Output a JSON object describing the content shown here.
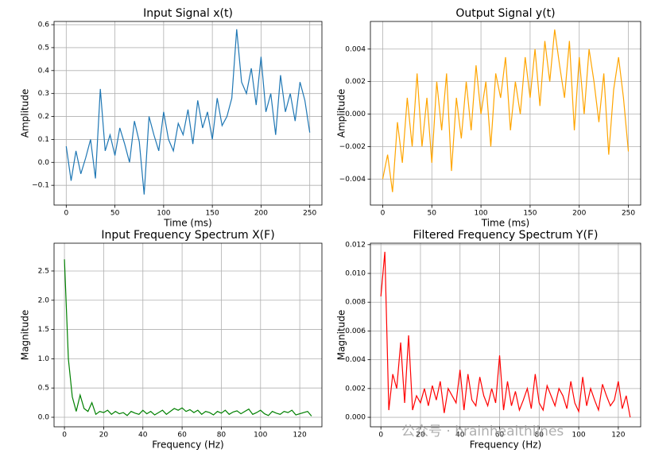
{
  "chart_data": [
    {
      "type": "line",
      "title": "Input Signal x(t)",
      "xlabel": "Time (ms)",
      "ylabel": "Amplitude",
      "color": "#1f77b4",
      "grid": true,
      "xlim": [
        -12.5,
        262.5
      ],
      "ylim": [
        -0.186,
        0.614
      ],
      "xticks": [
        0,
        50,
        100,
        150,
        200,
        250
      ],
      "yticks": [
        {
          "value": -0.1,
          "label": "−0.1"
        },
        {
          "value": 0,
          "label": "0.0"
        },
        0.1,
        0.2,
        0.3,
        0.4,
        0.5,
        0.6
      ],
      "x": [
        0,
        5,
        10,
        15,
        20,
        25,
        30,
        35,
        40,
        45,
        50,
        55,
        60,
        65,
        70,
        75,
        80,
        85,
        90,
        95,
        100,
        105,
        110,
        115,
        120,
        125,
        130,
        135,
        140,
        145,
        150,
        155,
        160,
        165,
        170,
        175,
        180,
        185,
        190,
        195,
        200,
        205,
        210,
        215,
        220,
        225,
        230,
        235,
        240,
        245,
        250
      ],
      "values": [
        0.07,
        -0.08,
        0.05,
        -0.05,
        0.02,
        0.1,
        -0.07,
        0.32,
        0.05,
        0.12,
        0.03,
        0.15,
        0.08,
        0.0,
        0.18,
        0.09,
        -0.14,
        0.2,
        0.12,
        0.05,
        0.22,
        0.1,
        0.05,
        0.17,
        0.12,
        0.23,
        0.08,
        0.27,
        0.15,
        0.22,
        0.1,
        0.28,
        0.16,
        0.2,
        0.28,
        0.58,
        0.35,
        0.3,
        0.41,
        0.25,
        0.46,
        0.22,
        0.3,
        0.12,
        0.38,
        0.22,
        0.3,
        0.18,
        0.35,
        0.27,
        0.13
      ]
    },
    {
      "type": "line",
      "title": "Output Signal y(t)",
      "xlabel": "Time (ms)",
      "ylabel": "Amplitude",
      "color": "#ffa500",
      "grid": true,
      "xlim": [
        -12.5,
        262.5
      ],
      "ylim": [
        -0.0056,
        0.0057
      ],
      "xticks": [
        0,
        50,
        100,
        150,
        200,
        250
      ],
      "yticks": [
        {
          "value": -0.004,
          "label": "−0.004"
        },
        {
          "value": -0.002,
          "label": "−0.002"
        },
        {
          "value": 0,
          "label": "0.000"
        },
        0.002,
        0.004
      ],
      "x": [
        0,
        5,
        10,
        15,
        20,
        25,
        30,
        35,
        40,
        45,
        50,
        55,
        60,
        65,
        70,
        75,
        80,
        85,
        90,
        95,
        100,
        105,
        110,
        115,
        120,
        125,
        130,
        135,
        140,
        145,
        150,
        155,
        160,
        165,
        170,
        175,
        180,
        185,
        190,
        195,
        200,
        205,
        210,
        215,
        220,
        225,
        230,
        235,
        240,
        245,
        250
      ],
      "values": [
        -0.004,
        -0.0025,
        -0.0048,
        -0.0005,
        -0.003,
        0.001,
        -0.002,
        0.0025,
        -0.002,
        0.001,
        -0.003,
        0.002,
        -0.001,
        0.0025,
        -0.0035,
        0.001,
        -0.0015,
        0.002,
        -0.001,
        0.003,
        0.0,
        0.002,
        -0.002,
        0.0025,
        0.001,
        0.0035,
        -0.001,
        0.002,
        0.0,
        0.0035,
        0.001,
        0.004,
        0.0005,
        0.0045,
        0.002,
        0.0052,
        0.003,
        0.001,
        0.0045,
        -0.001,
        0.0035,
        0.0,
        0.004,
        0.002,
        -0.0005,
        0.0025,
        -0.0025,
        0.0015,
        0.0035,
        0.001,
        -0.0023
      ]
    },
    {
      "type": "line",
      "title": "Input Frequency Spectrum X(F)",
      "xlabel": "Frequency (Hz)",
      "ylabel": "Magnitude",
      "color": "#008000",
      "grid": true,
      "xlim": [
        -5.3,
        131.3
      ],
      "ylim": [
        -0.163,
        2.975
      ],
      "xticks": [
        0,
        20,
        40,
        60,
        80,
        100,
        120
      ],
      "yticks": [
        {
          "value": 0,
          "label": "0.0"
        },
        0.5,
        {
          "value": 1,
          "label": "1.0"
        },
        1.5,
        {
          "value": 2,
          "label": "2.0"
        },
        2.5
      ],
      "x": [
        0,
        2,
        4,
        6,
        8,
        10,
        12,
        14,
        16,
        18,
        20,
        22,
        24,
        26,
        28,
        30,
        32,
        34,
        36,
        38,
        40,
        42,
        44,
        46,
        48,
        50,
        52,
        54,
        56,
        58,
        60,
        62,
        64,
        66,
        68,
        70,
        72,
        74,
        76,
        78,
        80,
        82,
        84,
        86,
        88,
        90,
        92,
        94,
        96,
        98,
        100,
        102,
        104,
        106,
        108,
        110,
        112,
        114,
        116,
        118,
        120,
        122,
        124,
        126
      ],
      "values": [
        2.7,
        1.0,
        0.35,
        0.1,
        0.38,
        0.15,
        0.1,
        0.25,
        0.05,
        0.1,
        0.08,
        0.12,
        0.05,
        0.1,
        0.06,
        0.08,
        0.03,
        0.1,
        0.07,
        0.05,
        0.12,
        0.06,
        0.1,
        0.04,
        0.08,
        0.12,
        0.05,
        0.1,
        0.15,
        0.12,
        0.16,
        0.1,
        0.13,
        0.08,
        0.12,
        0.05,
        0.1,
        0.08,
        0.04,
        0.1,
        0.07,
        0.12,
        0.05,
        0.09,
        0.11,
        0.06,
        0.1,
        0.14,
        0.05,
        0.08,
        0.12,
        0.06,
        0.03,
        0.1,
        0.07,
        0.05,
        0.1,
        0.08,
        0.12,
        0.04,
        0.06,
        0.08,
        0.1,
        0.02
      ]
    },
    {
      "type": "line",
      "title": "Filtered Frequency Spectrum Y(F)",
      "xlabel": "Frequency (Hz)",
      "ylabel": "Magnitude",
      "color": "#ff0000",
      "grid": true,
      "xlim": [
        -5.3,
        131.3
      ],
      "ylim": [
        -0.00066,
        0.0121
      ],
      "xticks": [
        0,
        20,
        40,
        60,
        80,
        100,
        120
      ],
      "yticks": [
        {
          "value": 0,
          "label": "0.000"
        },
        0.002,
        0.004,
        0.006,
        0.008,
        {
          "value": 0.01,
          "label": "0.010"
        },
        0.012
      ],
      "x": [
        0,
        2,
        4,
        6,
        8,
        10,
        12,
        14,
        16,
        18,
        20,
        22,
        24,
        26,
        28,
        30,
        32,
        34,
        36,
        38,
        40,
        42,
        44,
        46,
        48,
        50,
        52,
        54,
        56,
        58,
        60,
        62,
        64,
        66,
        68,
        70,
        72,
        74,
        76,
        78,
        80,
        82,
        84,
        86,
        88,
        90,
        92,
        94,
        96,
        98,
        100,
        102,
        104,
        106,
        108,
        110,
        112,
        114,
        116,
        118,
        120,
        122,
        124,
        126
      ],
      "values": [
        0.0084,
        0.0115,
        0.0005,
        0.003,
        0.002,
        0.0052,
        0.001,
        0.0057,
        0.0005,
        0.0015,
        0.001,
        0.002,
        0.0008,
        0.0022,
        0.0012,
        0.0025,
        0.0003,
        0.002,
        0.0015,
        0.001,
        0.0033,
        0.0005,
        0.003,
        0.0012,
        0.0008,
        0.0028,
        0.0015,
        0.0008,
        0.002,
        0.001,
        0.0043,
        0.0005,
        0.0025,
        0.0008,
        0.0018,
        0.0005,
        0.0012,
        0.002,
        0.0006,
        0.003,
        0.001,
        0.0005,
        0.0022,
        0.0015,
        0.0008,
        0.002,
        0.0015,
        0.0006,
        0.0025,
        0.001,
        0.0004,
        0.0028,
        0.0008,
        0.002,
        0.0012,
        0.0005,
        0.0023,
        0.0015,
        0.0008,
        0.0012,
        0.0025,
        0.0006,
        0.0015,
        0.0
      ]
    }
  ],
  "watermark": "公众号 · brainhealthlines"
}
